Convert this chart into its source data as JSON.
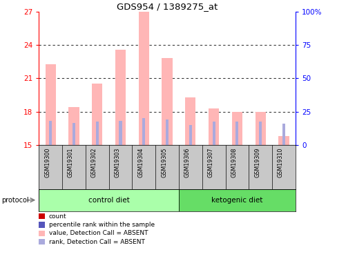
{
  "title": "GDS954 / 1389275_at",
  "samples": [
    "GSM19300",
    "GSM19301",
    "GSM19302",
    "GSM19303",
    "GSM19304",
    "GSM19305",
    "GSM19306",
    "GSM19307",
    "GSM19308",
    "GSM19309",
    "GSM19310"
  ],
  "values": [
    22.3,
    18.4,
    20.5,
    23.6,
    27.0,
    22.8,
    19.3,
    18.3,
    18.0,
    18.0,
    15.8
  ],
  "rank_vals": [
    17.2,
    17.0,
    17.1,
    17.2,
    17.4,
    17.3,
    16.8,
    17.1,
    17.1,
    17.1,
    16.9
  ],
  "base": 15.0,
  "ylim_left": [
    15,
    27
  ],
  "ylim_right": [
    0,
    100
  ],
  "yticks_left": [
    15,
    18,
    21,
    24,
    27
  ],
  "yticks_right": [
    0,
    25,
    50,
    75,
    100
  ],
  "ytick_labels_right": [
    "0",
    "25",
    "50",
    "75",
    "100%"
  ],
  "hgrid_lines": [
    18,
    21,
    24
  ],
  "control_count": 6,
  "bar_color_pink": "#FFB6B6",
  "bar_color_blue": "#AAAADD",
  "bg_gray": "#C8C8C8",
  "bg_green_light": "#AAFFAA",
  "bg_green_dark": "#66DD66",
  "control_label": "control diet",
  "ketogenic_label": "ketogenic diet",
  "protocol_label": "protocol",
  "legend_items": [
    {
      "label": "count",
      "color": "#CC0000"
    },
    {
      "label": "percentile rank within the sample",
      "color": "#5555BB"
    },
    {
      "label": "value, Detection Call = ABSENT",
      "color": "#FFB6B6"
    },
    {
      "label": "rank, Detection Call = ABSENT",
      "color": "#AAAADD"
    }
  ]
}
